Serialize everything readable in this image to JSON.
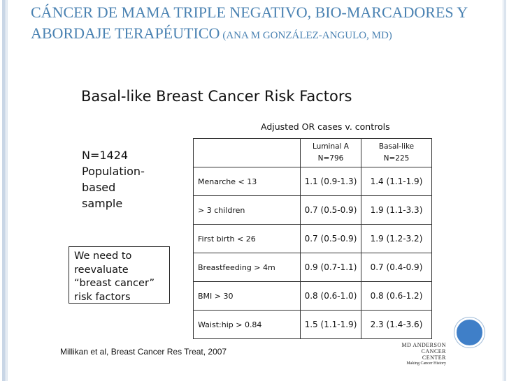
{
  "slide": {
    "title_main": "CÁNCER DE MAMA TRIPLE NEGATIVO, BIO-MARCADORES Y ABORDAJE TERAPÉUTICO",
    "title_author": "(ANA M GONZÁLEZ-ANGULO, MD)"
  },
  "figure": {
    "title": "Basal-like Breast Cancer Risk Factors",
    "subtitle": "Adjusted OR cases v. controls",
    "population_lines": [
      "N=1424",
      "Population-",
      "based",
      "sample"
    ],
    "note_lines": [
      "We need to",
      "reevaluate",
      "“breast cancer”",
      "risk factors"
    ],
    "columns": [
      {
        "name": "Luminal A",
        "n": "N=796"
      },
      {
        "name": "Basal-like",
        "n": "N=225"
      }
    ],
    "rows": [
      {
        "factor": "Menarche < 13",
        "luminal": "1.1 (0.9-1.3)",
        "basal": "1.4 (1.1-1.9)"
      },
      {
        "factor": "> 3 children",
        "luminal": "0.7 (0.5-0.9)",
        "basal": "1.9 (1.1-3.3)"
      },
      {
        "factor": "First birth < 26",
        "luminal": "0.7 (0.5-0.9)",
        "basal": "1.9 (1.2-3.2)"
      },
      {
        "factor": "Breastfeeding > 4m",
        "luminal": "0.9 (0.7-1.1)",
        "basal": "0.7 (0.4-0.9)"
      },
      {
        "factor": "BMI > 30",
        "luminal": "0.8 (0.6-1.0)",
        "basal": "0.8 (0.6-1.2)"
      },
      {
        "factor": "Waist:hip > 0.84",
        "luminal": "1.5 (1.1-1.9)",
        "basal": "2.3 (1.4-3.6)"
      }
    ],
    "citation": "Millikan et al, Breast Cancer Res Treat, 2007",
    "logo_lines": [
      "MD ANDERSON",
      "CANCER CENTER",
      "Making Cancer History"
    ]
  },
  "colors": {
    "title": "#4a82b2",
    "accent_circle": "#3f7fc8",
    "rail": "#c9d6e6"
  },
  "icons": {
    "nav_circle": "blue-circle-icon"
  }
}
